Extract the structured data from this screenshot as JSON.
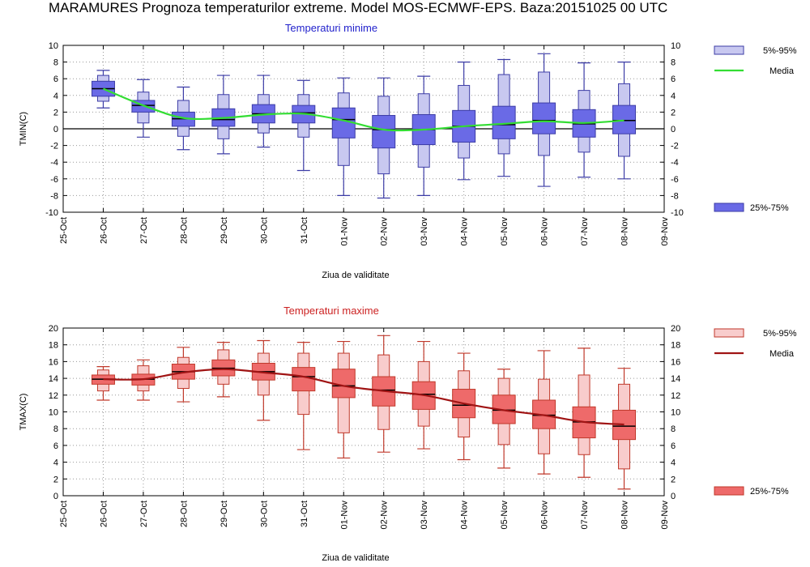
{
  "header": {
    "title": "MARAMURES  Prognoza temperaturilor extreme.  Model MOS-ECMWF-EPS. Baza:20151025 00 UTC"
  },
  "chart_data": [
    {
      "type": "box",
      "title": "Temperaturi minime",
      "ylabel": "TMIN(C)",
      "xlabel": "Ziua de validitate",
      "ylim": [
        -10,
        10
      ],
      "yticks": [
        10,
        8,
        6,
        4,
        2,
        0,
        -2,
        -4,
        -6,
        -8,
        -10
      ],
      "categories": [
        "25-Oct",
        "26-Oct",
        "27-Oct",
        "28-Oct",
        "29-Oct",
        "30-Oct",
        "31-Oct",
        "01-Nov",
        "02-Nov",
        "03-Nov",
        "04-Nov",
        "05-Nov",
        "06-Nov",
        "07-Nov",
        "08-Nov",
        "09-Nov"
      ],
      "grid": true,
      "zero_line": true,
      "legend": {
        "outer": "5%-95%",
        "mean": "Media",
        "inner": "25%-75%",
        "position": "right"
      },
      "colors": {
        "outer": "#c8c8f0",
        "inner": "#6a6ae6",
        "edge": "#3c3ca6",
        "mean": "#33dd33"
      },
      "boxes": [
        {
          "x": "26-Oct",
          "whisker": [
            2.5,
            7.0
          ],
          "p5_95": [
            3.3,
            6.4
          ],
          "p25_75": [
            3.9,
            5.7
          ],
          "median": 4.8
        },
        {
          "x": "27-Oct",
          "whisker": [
            -1.0,
            5.9
          ],
          "p5_95": [
            0.7,
            4.4
          ],
          "p25_75": [
            2.0,
            3.4
          ],
          "median": 2.8
        },
        {
          "x": "28-Oct",
          "whisker": [
            -2.5,
            5.0
          ],
          "p5_95": [
            -0.9,
            3.4
          ],
          "p25_75": [
            0.3,
            2.0
          ],
          "median": 1.2
        },
        {
          "x": "29-Oct",
          "whisker": [
            -3.0,
            6.4
          ],
          "p5_95": [
            -1.2,
            4.1
          ],
          "p25_75": [
            0.3,
            2.4
          ],
          "median": 1.1
        },
        {
          "x": "30-Oct",
          "whisker": [
            -2.2,
            6.4
          ],
          "p5_95": [
            -0.5,
            4.1
          ],
          "p25_75": [
            0.7,
            2.9
          ],
          "median": 1.8
        },
        {
          "x": "31-Oct",
          "whisker": [
            -5.0,
            5.8
          ],
          "p5_95": [
            -1.0,
            4.1
          ],
          "p25_75": [
            0.7,
            2.8
          ],
          "median": 1.9
        },
        {
          "x": "01-Nov",
          "whisker": [
            -8.0,
            6.1
          ],
          "p5_95": [
            -4.4,
            4.3
          ],
          "p25_75": [
            -1.1,
            2.5
          ],
          "median": 1.1
        },
        {
          "x": "02-Nov",
          "whisker": [
            -8.3,
            6.1
          ],
          "p5_95": [
            -5.4,
            3.9
          ],
          "p25_75": [
            -2.3,
            1.6
          ],
          "median": -0.1
        },
        {
          "x": "03-Nov",
          "whisker": [
            -8.0,
            6.3
          ],
          "p5_95": [
            -4.6,
            4.2
          ],
          "p25_75": [
            -1.9,
            1.7
          ],
          "median": -0.1
        },
        {
          "x": "04-Nov",
          "whisker": [
            -6.1,
            8.0
          ],
          "p5_95": [
            -3.5,
            5.2
          ],
          "p25_75": [
            -1.6,
            2.2
          ],
          "median": 0.3
        },
        {
          "x": "05-Nov",
          "whisker": [
            -5.7,
            8.3
          ],
          "p5_95": [
            -3.0,
            6.5
          ],
          "p25_75": [
            -1.2,
            2.7
          ],
          "median": 0.5
        },
        {
          "x": "06-Nov",
          "whisker": [
            -6.9,
            9.0
          ],
          "p5_95": [
            -3.2,
            6.8
          ],
          "p25_75": [
            -0.6,
            3.1
          ],
          "median": 1.0
        },
        {
          "x": "07-Nov",
          "whisker": [
            -5.8,
            7.9
          ],
          "p5_95": [
            -2.8,
            4.6
          ],
          "p25_75": [
            -1.0,
            2.3
          ],
          "median": 0.6
        },
        {
          "x": "08-Nov",
          "whisker": [
            -6.0,
            8.0
          ],
          "p5_95": [
            -3.3,
            5.4
          ],
          "p25_75": [
            -0.6,
            2.8
          ],
          "median": 1.0
        }
      ],
      "mean": [
        {
          "x": "26-Oct",
          "y": 4.8
        },
        {
          "x": "27-Oct",
          "y": 2.8
        },
        {
          "x": "28-Oct",
          "y": 1.3
        },
        {
          "x": "29-Oct",
          "y": 1.3
        },
        {
          "x": "30-Oct",
          "y": 1.7
        },
        {
          "x": "31-Oct",
          "y": 1.8
        },
        {
          "x": "01-Nov",
          "y": 1.0
        },
        {
          "x": "02-Nov",
          "y": -0.1
        },
        {
          "x": "03-Nov",
          "y": -0.1
        },
        {
          "x": "04-Nov",
          "y": 0.3
        },
        {
          "x": "05-Nov",
          "y": 0.6
        },
        {
          "x": "06-Nov",
          "y": 0.9
        },
        {
          "x": "07-Nov",
          "y": 0.7
        },
        {
          "x": "08-Nov",
          "y": 1.0
        }
      ]
    },
    {
      "type": "box",
      "title": "Temperaturi maxime",
      "ylabel": "TMAX(C)",
      "xlabel": "Ziua de validitate",
      "ylim": [
        0,
        20
      ],
      "yticks": [
        20,
        18,
        16,
        14,
        12,
        10,
        8,
        6,
        4,
        2,
        0
      ],
      "categories": [
        "25-Oct",
        "26-Oct",
        "27-Oct",
        "28-Oct",
        "29-Oct",
        "30-Oct",
        "31-Oct",
        "01-Nov",
        "02-Nov",
        "03-Nov",
        "04-Nov",
        "05-Nov",
        "06-Nov",
        "07-Nov",
        "08-Nov",
        "09-Nov"
      ],
      "grid": true,
      "zero_line": false,
      "legend": {
        "outer": "5%-95%",
        "mean": "Media",
        "inner": "25%-75%",
        "position": "right"
      },
      "colors": {
        "outer": "#f8cccc",
        "inner": "#ee6a6a",
        "edge": "#c0392b",
        "mean": "#a01414"
      },
      "boxes": [
        {
          "x": "26-Oct",
          "whisker": [
            11.4,
            15.4
          ],
          "p5_95": [
            12.5,
            15.0
          ],
          "p25_75": [
            13.3,
            14.4
          ],
          "median": 13.9
        },
        {
          "x": "27-Oct",
          "whisker": [
            11.4,
            16.2
          ],
          "p5_95": [
            12.5,
            15.5
          ],
          "p25_75": [
            13.2,
            14.5
          ],
          "median": 13.9
        },
        {
          "x": "28-Oct",
          "whisker": [
            11.2,
            17.7
          ],
          "p5_95": [
            12.8,
            16.5
          ],
          "p25_75": [
            13.9,
            15.7
          ],
          "median": 14.8
        },
        {
          "x": "29-Oct",
          "whisker": [
            11.8,
            18.3
          ],
          "p5_95": [
            13.3,
            17.4
          ],
          "p25_75": [
            14.3,
            16.2
          ],
          "median": 15.2
        },
        {
          "x": "30-Oct",
          "whisker": [
            9.0,
            18.5
          ],
          "p5_95": [
            12.0,
            17.0
          ],
          "p25_75": [
            13.8,
            15.8
          ],
          "median": 14.8
        },
        {
          "x": "31-Oct",
          "whisker": [
            5.5,
            18.3
          ],
          "p5_95": [
            9.7,
            17.0
          ],
          "p25_75": [
            12.5,
            15.3
          ],
          "median": 14.2
        },
        {
          "x": "01-Nov",
          "whisker": [
            4.5,
            18.4
          ],
          "p5_95": [
            7.5,
            17.0
          ],
          "p25_75": [
            11.7,
            15.1
          ],
          "median": 13.1
        },
        {
          "x": "02-Nov",
          "whisker": [
            5.2,
            19.1
          ],
          "p5_95": [
            7.9,
            16.8
          ],
          "p25_75": [
            10.7,
            14.2
          ],
          "median": 12.6
        },
        {
          "x": "03-Nov",
          "whisker": [
            5.6,
            18.4
          ],
          "p5_95": [
            8.3,
            16.0
          ],
          "p25_75": [
            10.3,
            13.6
          ],
          "median": 12.1
        },
        {
          "x": "04-Nov",
          "whisker": [
            4.3,
            17.0
          ],
          "p5_95": [
            7.0,
            14.9
          ],
          "p25_75": [
            9.3,
            12.7
          ],
          "median": 10.8
        },
        {
          "x": "05-Nov",
          "whisker": [
            3.3,
            15.1
          ],
          "p5_95": [
            6.1,
            14.0
          ],
          "p25_75": [
            8.6,
            12.0
          ],
          "median": 10.2
        },
        {
          "x": "06-Nov",
          "whisker": [
            2.6,
            17.3
          ],
          "p5_95": [
            5.0,
            13.9
          ],
          "p25_75": [
            8.0,
            11.4
          ],
          "median": 9.6
        },
        {
          "x": "07-Nov",
          "whisker": [
            2.2,
            17.6
          ],
          "p5_95": [
            4.9,
            14.4
          ],
          "p25_75": [
            6.9,
            10.6
          ],
          "median": 8.8
        },
        {
          "x": "08-Nov",
          "whisker": [
            0.8,
            15.2
          ],
          "p5_95": [
            3.2,
            13.3
          ],
          "p25_75": [
            6.7,
            10.2
          ],
          "median": 8.3
        }
      ],
      "mean": [
        {
          "x": "26-Oct",
          "y": 13.9
        },
        {
          "x": "27-Oct",
          "y": 13.9
        },
        {
          "x": "28-Oct",
          "y": 14.7
        },
        {
          "x": "29-Oct",
          "y": 15.1
        },
        {
          "x": "30-Oct",
          "y": 14.7
        },
        {
          "x": "31-Oct",
          "y": 14.2
        },
        {
          "x": "01-Nov",
          "y": 13.1
        },
        {
          "x": "02-Nov",
          "y": 12.5
        },
        {
          "x": "03-Nov",
          "y": 12.0
        },
        {
          "x": "04-Nov",
          "y": 11.0
        },
        {
          "x": "05-Nov",
          "y": 10.2
        },
        {
          "x": "06-Nov",
          "y": 9.6
        },
        {
          "x": "07-Nov",
          "y": 8.8
        },
        {
          "x": "08-Nov",
          "y": 8.5
        }
      ]
    }
  ]
}
